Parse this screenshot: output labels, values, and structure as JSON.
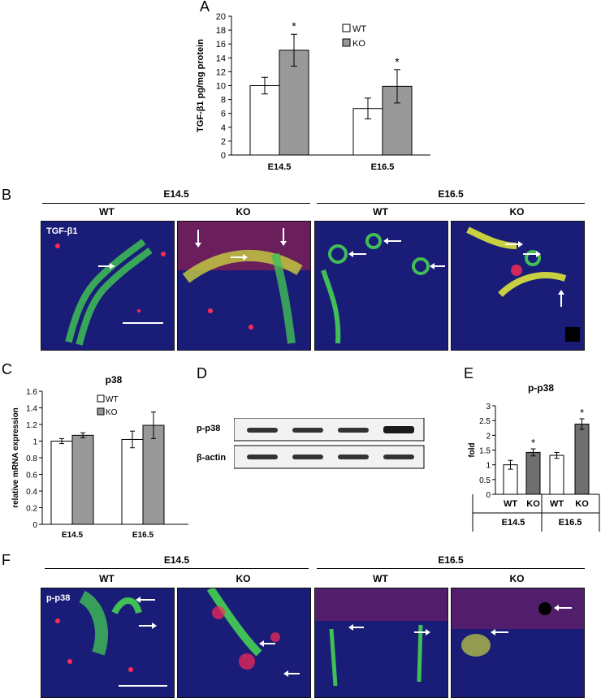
{
  "panels": {
    "A": "A",
    "B": "B",
    "C": "C",
    "D": "D",
    "E": "E",
    "F": "F"
  },
  "colors": {
    "wt": "#ffffff",
    "ko": "#999999",
    "ko_dark": "#6f6f6f",
    "nuclei": "#1d2080",
    "green": "#4fd86a",
    "red": "#ff2a55"
  },
  "chart_a": {
    "type": "bar",
    "categories": [
      "E14.5",
      "E16.5"
    ],
    "series": [
      {
        "name": "WT",
        "values": [
          10.0,
          6.7
        ],
        "errors": [
          1.2,
          1.5
        ]
      },
      {
        "name": "KO",
        "values": [
          15.1,
          9.9
        ],
        "errors": [
          2.3,
          2.4
        ]
      }
    ],
    "significance": [
      {
        "series": "KO",
        "category": "E14.5",
        "mark": "*"
      },
      {
        "series": "KO",
        "category": "E16.5",
        "mark": "*"
      }
    ],
    "ylabel": "TGF-β1 pg/mg protein",
    "ylim": [
      0,
      20
    ],
    "yticks": [
      0,
      2,
      4,
      6,
      8,
      10,
      12,
      14,
      16,
      18,
      20
    ],
    "legend_position": "top-right"
  },
  "chart_c": {
    "type": "bar",
    "title": "p38",
    "categories": [
      "E14.5",
      "E16.5"
    ],
    "series": [
      {
        "name": "WT",
        "values": [
          1.0,
          1.02
        ],
        "errors": [
          0.03,
          0.1
        ]
      },
      {
        "name": "KO",
        "values": [
          1.07,
          1.19
        ],
        "errors": [
          0.03,
          0.16
        ]
      }
    ],
    "ylabel": "relative mRNA expression",
    "ylim": [
      0,
      1.6
    ],
    "yticks": [
      "0",
      "0.2",
      "0.4",
      "0.6",
      "0.8",
      "1",
      "1.2",
      "1.4",
      "1.6"
    ],
    "legend_position": "top-right"
  },
  "chart_e": {
    "type": "bar",
    "title": "p-p38",
    "categories": [
      "WT",
      "KO",
      "WT",
      "KO"
    ],
    "groups": [
      "E14.5",
      "E16.5"
    ],
    "values": [
      1.0,
      1.42,
      1.32,
      2.38
    ],
    "errors": [
      0.15,
      0.12,
      0.1,
      0.18
    ],
    "significance": [
      "",
      "*",
      "",
      "*"
    ],
    "ylabel": "fold",
    "ylim": [
      0,
      3
    ],
    "yticks": [
      "0",
      "0.5",
      "1",
      "1.5",
      "2",
      "2.5",
      "3"
    ]
  },
  "blot_d": {
    "rows": [
      "p-p38",
      "β-actin"
    ]
  },
  "panel_b": {
    "groups": [
      "E14.5",
      "E16.5"
    ],
    "subs": [
      "WT",
      "KO",
      "WT",
      "KO"
    ],
    "stain": "TGF-β1"
  },
  "panel_f": {
    "groups": [
      "E14.5",
      "E16.5"
    ],
    "subs": [
      "WT",
      "KO",
      "WT",
      "KO"
    ],
    "stain": "p-p38"
  }
}
